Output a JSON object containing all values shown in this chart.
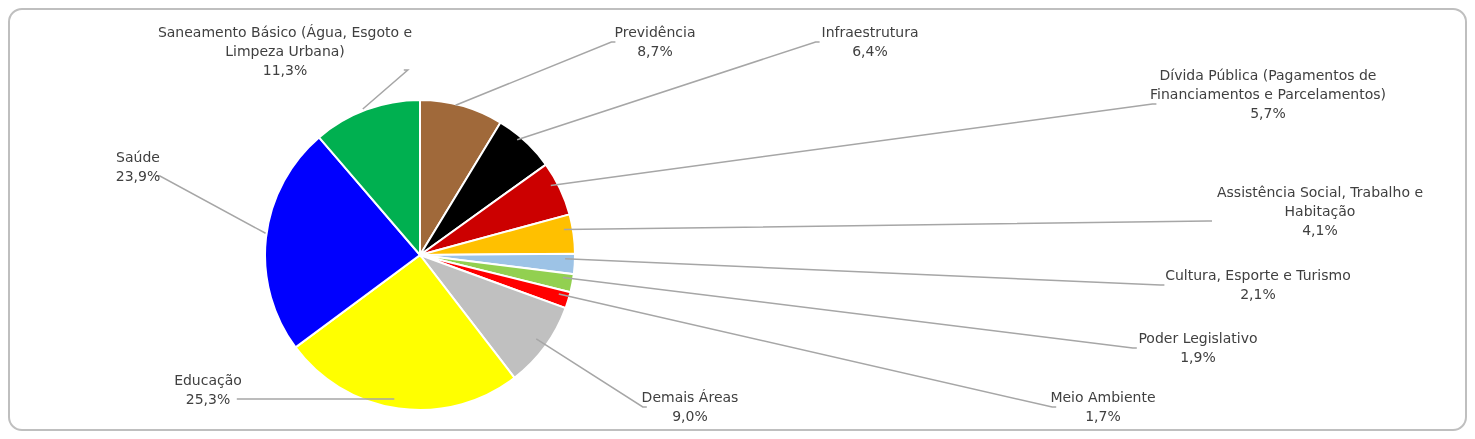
{
  "chart_data": {
    "type": "pie",
    "categories": [
      "Previdência",
      "Infraestrutura",
      "Dívida Pública (Pagamentos de Financiamentos e Parcelamentos)",
      "Assistência Social, Trabalho e Habitação",
      "Cultura, Esporte e Turismo",
      "Poder Legislativo",
      "Meio Ambiente",
      "Demais Áreas",
      "Educação",
      "Saúde",
      "Saneamento Básico (Água, Esgoto e Limpeza Urbana)"
    ],
    "values": [
      8.7,
      6.4,
      5.7,
      4.1,
      2.1,
      1.9,
      1.7,
      9.0,
      25.3,
      23.9,
      11.3
    ],
    "value_labels": [
      "8,7%",
      "6,4%",
      "5,7%",
      "4,1%",
      "2,1%",
      "1,9%",
      "1,7%",
      "9,0%",
      "25,3%",
      "23,9%",
      "11,3%"
    ],
    "colors": [
      "#a0693a",
      "#000000",
      "#cc0000",
      "#ffc000",
      "#9dc3e6",
      "#92d050",
      "#ff0000",
      "#c0c0c0",
      "#ffff00",
      "#0000ff",
      "#00b050"
    ],
    "legend": false
  }
}
